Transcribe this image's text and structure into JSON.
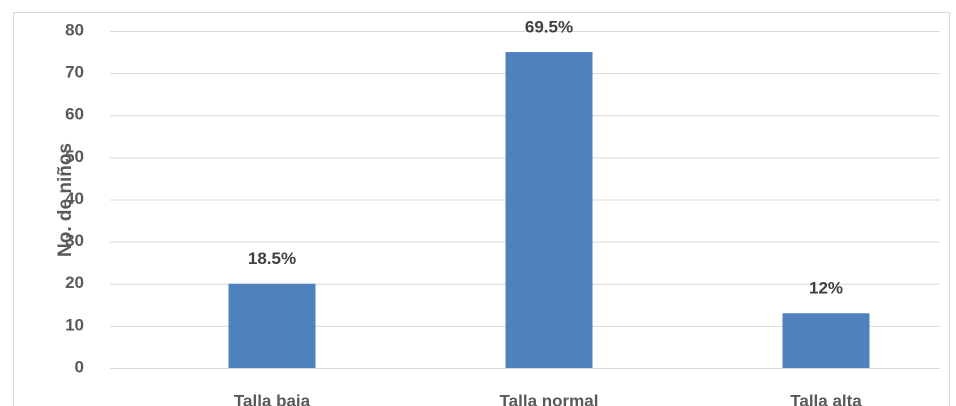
{
  "chart_data": {
    "type": "bar",
    "y_label": "No. de niños",
    "categories": [
      "Talla baja",
      "Talla normal",
      "Talla alta"
    ],
    "values": [
      20,
      75,
      13
    ],
    "bar_annotations": [
      "18.5%",
      "69.5%",
      "12%"
    ],
    "color": "#4f81bd",
    "ylim": [
      0,
      80
    ],
    "yticks": [
      0,
      10,
      20,
      30,
      40,
      50,
      60,
      70,
      80
    ],
    "grid": true
  }
}
